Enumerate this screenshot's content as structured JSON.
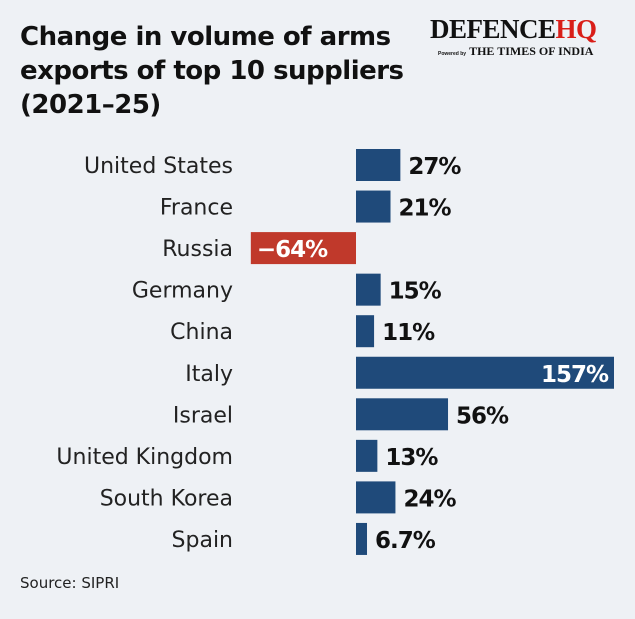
{
  "chart_data": {
    "type": "bar",
    "orientation": "horizontal",
    "title": "Change in volume of arms exports of top 10 suppliers (2021–25)",
    "categories": [
      "United States",
      "France",
      "Russia",
      "Germany",
      "China",
      "Italy",
      "Israel",
      "United Kingdom",
      "South Korea",
      "Spain"
    ],
    "values": [
      27,
      21,
      -64,
      15,
      11,
      157,
      56,
      13,
      24,
      6.7
    ],
    "labels": [
      "27%",
      "21%",
      "−64%",
      "15%",
      "11%",
      "157%",
      "56%",
      "13%",
      "24%",
      "6.7%"
    ],
    "unit": "%",
    "grid": false,
    "colors": {
      "positive": "#1f4a7a",
      "negative": "#c0392b"
    }
  },
  "title_lines": [
    "Change in volume of arms",
    "exports of top 10 suppliers",
    "(2021–25)"
  ],
  "logo": {
    "main": "DEFENCE",
    "accent": "HQ",
    "powered_by": "Powered by",
    "sub": "THE TIMES OF INDIA"
  },
  "source": "Source: SIPRI"
}
